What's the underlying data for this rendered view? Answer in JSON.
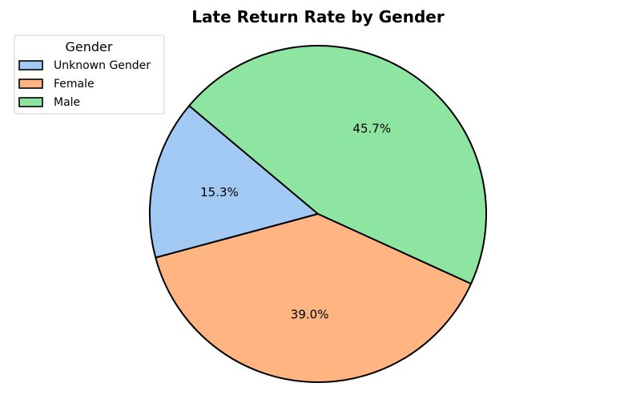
{
  "chart_data": {
    "type": "pie",
    "title": "Late Return Rate by Gender",
    "categories": [
      "Unknown Gender",
      "Female",
      "Male"
    ],
    "values": [
      15.3,
      39.0,
      45.7
    ],
    "labels": [
      "15.3%",
      "39.0%",
      "45.7%"
    ],
    "colors": [
      "#a1c9f4",
      "#ffb482",
      "#8de5a1"
    ],
    "edge_color": "#000000",
    "start_angle_deg": 140,
    "direction": "counterclockwise",
    "legend": {
      "title": "Gender",
      "placement": "upper-left",
      "entries": [
        "Unknown Gender",
        "Female",
        "Male"
      ]
    }
  }
}
